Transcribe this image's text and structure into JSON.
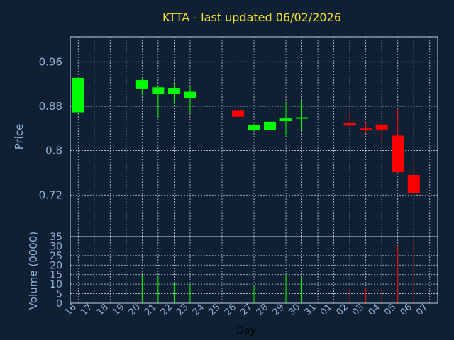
{
  "chart_data": {
    "type": "candlestick",
    "title": "KTTA - last updated 06/02/2026",
    "ylabel": "Price",
    "volume_label": "Volume (0000)",
    "xlabel": "Day",
    "price_axis": {
      "ylim": [
        0.645,
        1.005
      ],
      "ticks": [
        "0.96",
        "0.88",
        "0.8",
        "0.72"
      ],
      "tick_values": [
        0.96,
        0.88,
        0.8,
        0.72
      ]
    },
    "volume_axis": {
      "ylim": [
        0,
        35
      ],
      "ticks": [
        "0",
        "5",
        "10",
        "15",
        "20",
        "25",
        "30",
        "35"
      ],
      "tick_values": [
        0,
        5,
        10,
        15,
        20,
        25,
        30,
        35
      ]
    },
    "x_ticks": [
      "16",
      "17",
      "18",
      "19",
      "20",
      "21",
      "22",
      "23",
      "24",
      "25",
      "26",
      "27",
      "28",
      "29",
      "30",
      "31",
      "01",
      "02",
      "03",
      "04",
      "05",
      "06",
      "07"
    ],
    "grid": true,
    "colors": {
      "up": "#00ff00",
      "down": "#ff0000",
      "background": "#0f2034",
      "title": "#f2e12a",
      "axis_text": "#8fb1d6"
    },
    "candles": [
      {
        "day": "16",
        "open": 0.869,
        "high": 0.931,
        "low": 0.869,
        "close": 0.931,
        "volume": 0
      },
      {
        "day": "20",
        "open": 0.912,
        "high": 0.931,
        "low": 0.9,
        "close": 0.927,
        "volume": 15
      },
      {
        "day": "21",
        "open": 0.902,
        "high": 0.916,
        "low": 0.86,
        "close": 0.914,
        "volume": 14
      },
      {
        "day": "22",
        "open": 0.902,
        "high": 0.921,
        "low": 0.884,
        "close": 0.913,
        "volume": 11
      },
      {
        "day": "23",
        "open": 0.894,
        "high": 0.916,
        "low": 0.868,
        "close": 0.906,
        "volume": 10
      },
      {
        "day": "26",
        "open": 0.873,
        "high": 0.879,
        "low": 0.838,
        "close": 0.861,
        "volume": 15
      },
      {
        "day": "27",
        "open": 0.837,
        "high": 0.848,
        "low": 0.835,
        "close": 0.846,
        "volume": 9
      },
      {
        "day": "28",
        "open": 0.837,
        "high": 0.871,
        "low": 0.836,
        "close": 0.852,
        "volume": 13
      },
      {
        "day": "29",
        "open": 0.853,
        "high": 0.885,
        "low": 0.827,
        "close": 0.858,
        "volume": 15
      },
      {
        "day": "30",
        "open": 0.858,
        "high": 0.889,
        "low": 0.837,
        "close": 0.86,
        "volume": 13
      },
      {
        "day": "02",
        "open": 0.85,
        "high": 0.872,
        "low": 0.843,
        "close": 0.845,
        "volume": 8
      },
      {
        "day": "03",
        "open": 0.84,
        "high": 0.851,
        "low": 0.831,
        "close": 0.839,
        "volume": 8
      },
      {
        "day": "04",
        "open": 0.847,
        "high": 0.849,
        "low": 0.815,
        "close": 0.838,
        "volume": 8
      },
      {
        "day": "05",
        "open": 0.827,
        "high": 0.875,
        "low": 0.76,
        "close": 0.761,
        "volume": 30
      },
      {
        "day": "06",
        "open": 0.756,
        "high": 0.782,
        "low": 0.724,
        "close": 0.724,
        "volume": 33
      }
    ]
  }
}
